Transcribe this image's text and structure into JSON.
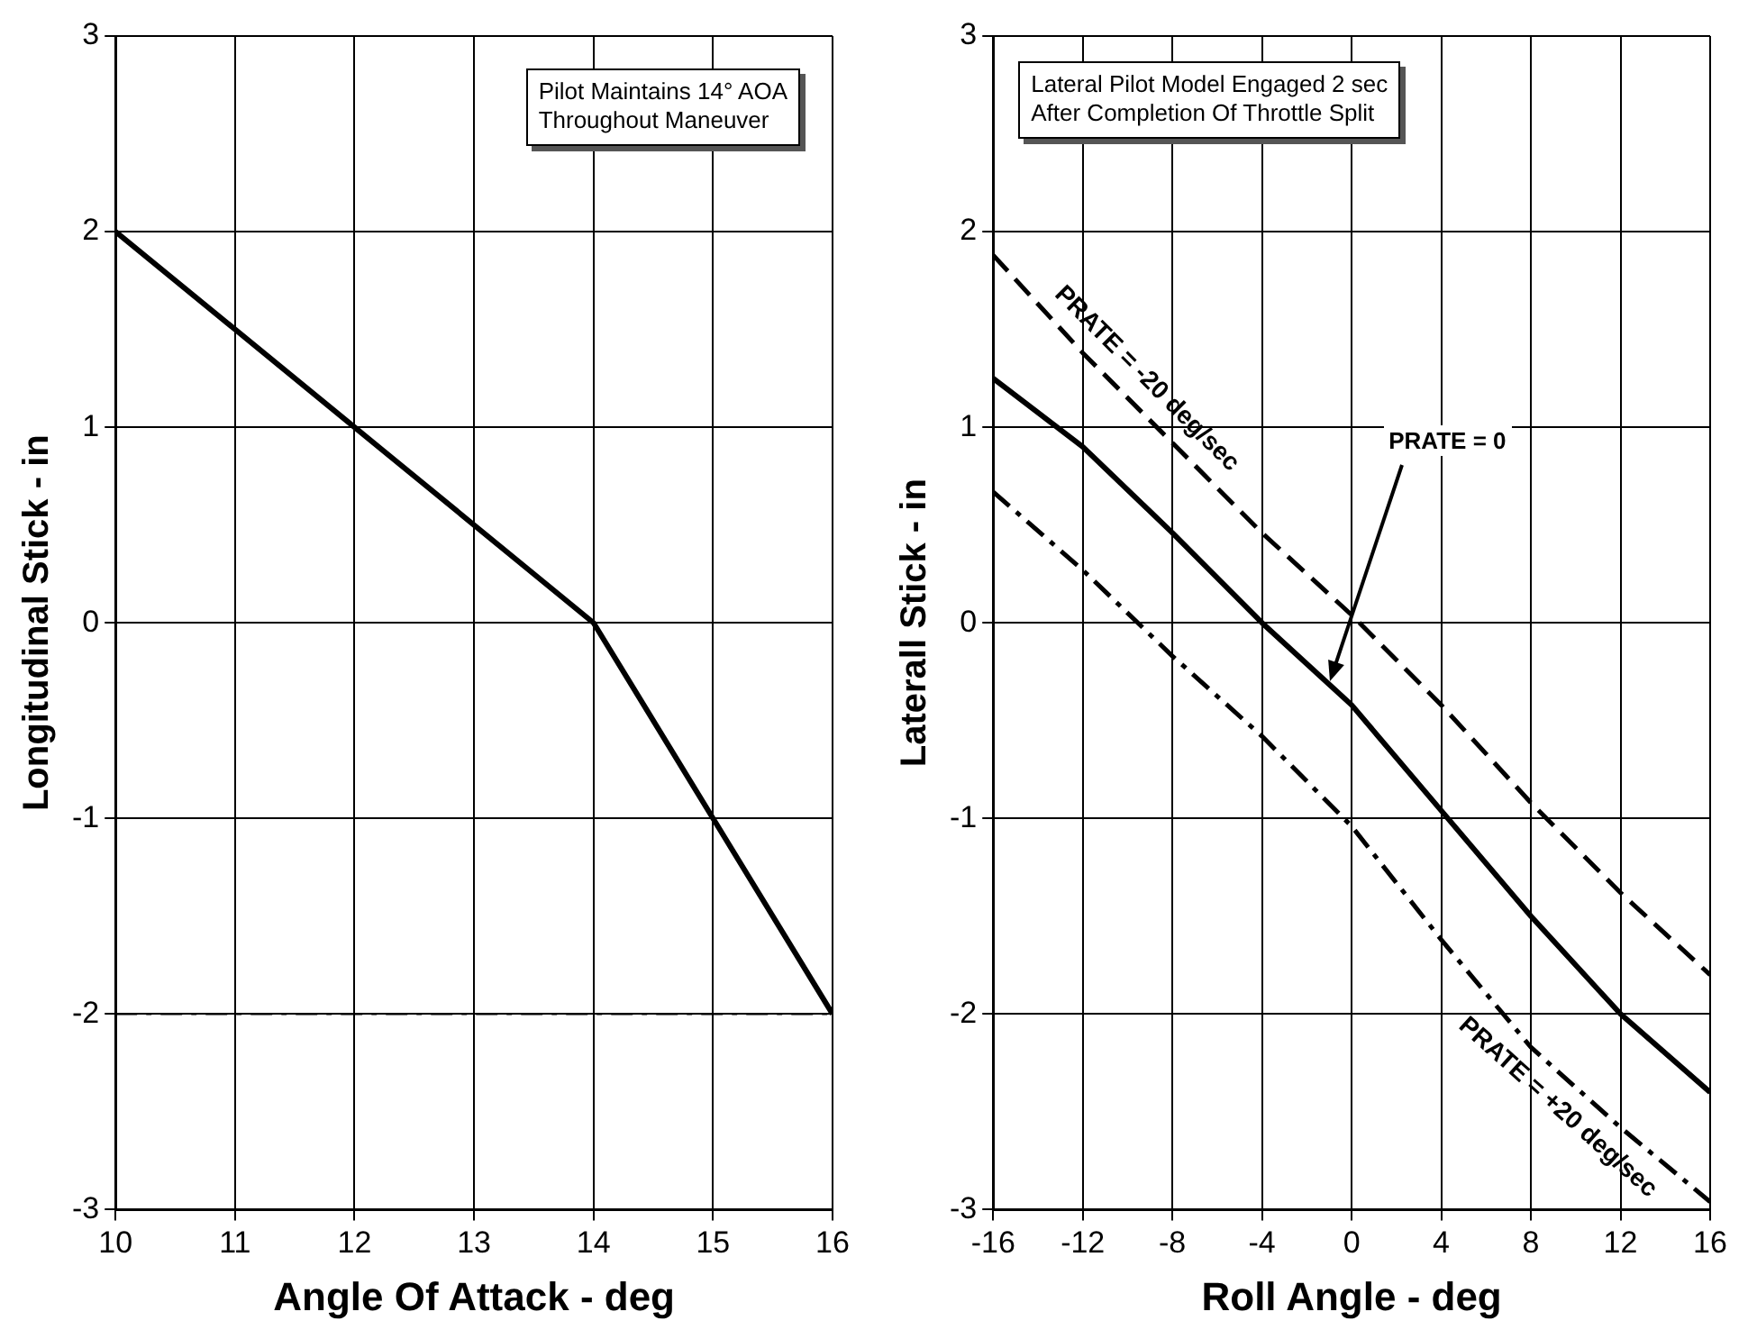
{
  "chart_data": [
    {
      "type": "line",
      "xlabel": "Angle Of Attack - deg",
      "ylabel": "Longitudinal Stick - in",
      "x": [
        10,
        12,
        14,
        15,
        16
      ],
      "series": [
        {
          "color": "#000000",
          "values": [
            2,
            1,
            0,
            -1,
            -2
          ],
          "line_style": "solid"
        }
      ],
      "xlim": [
        10,
        16
      ],
      "xticks": [
        10,
        11,
        12,
        13,
        14,
        15,
        16
      ],
      "ylim": [
        -3,
        3
      ],
      "yticks": [
        -3,
        -2,
        -1,
        0,
        1,
        2,
        3
      ],
      "grid": true,
      "legend": false,
      "marker": "none",
      "ref_lines": [
        {
          "axis": "y",
          "value": -2,
          "line_style": "dashdot",
          "color": "#000000"
        }
      ],
      "annotations": [
        "Pilot Maintains 14° AOA\nThroughout Maneuver"
      ]
    },
    {
      "type": "line",
      "xlabel": "Roll Angle - deg",
      "ylabel": "Laterall Stick - in",
      "x": [
        -16,
        -12,
        -8,
        -4,
        0,
        4,
        8,
        12,
        16
      ],
      "series": [
        {
          "name": "PRATE = -20 deg/sec",
          "color": "#000000",
          "line_style": "dashed",
          "values": [
            1.88,
            1.38,
            0.92,
            0.46,
            0.04,
            -0.42,
            -0.92,
            -1.38,
            -1.8
          ]
        },
        {
          "color": "#000000",
          "line_style": "solid",
          "values": [
            1.25,
            0.9,
            0.46,
            0,
            -0.42,
            -0.96,
            -1.5,
            -2.0,
            -2.4
          ]
        },
        {
          "name": "PRATE = +20 deg/sec",
          "color": "#000000",
          "line_style": "dashdot",
          "values": [
            0.67,
            0.27,
            -0.17,
            -0.58,
            -1.04,
            -1.62,
            -2.17,
            -2.58,
            -2.96
          ]
        }
      ],
      "xlim": [
        -16,
        16
      ],
      "xticks": [
        -16,
        -12,
        -8,
        -4,
        0,
        4,
        8,
        12,
        16
      ],
      "ylim": [
        -3,
        3
      ],
      "yticks": [
        -3,
        -2,
        -1,
        0,
        1,
        2,
        3
      ],
      "grid": true,
      "legend": false,
      "marker": "none",
      "annotations": [
        "Lateral Pilot Model Engaged 2 sec\nAfter Completion Of Throttle Split",
        {
          "text": "PRATE = 0",
          "x": -1,
          "y": -0.3
        }
      ]
    }
  ]
}
